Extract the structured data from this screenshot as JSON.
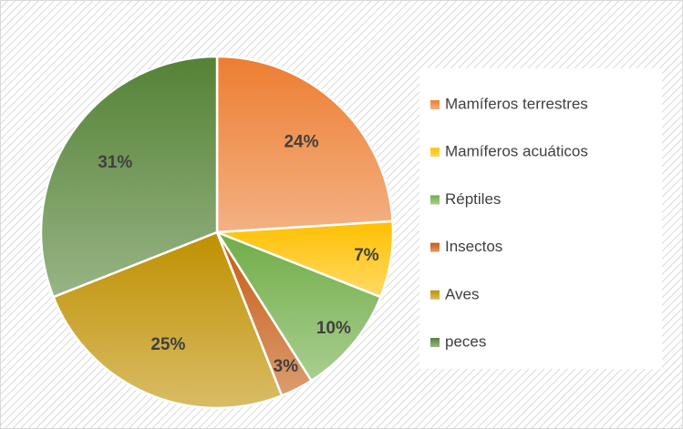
{
  "chart_data": {
    "type": "pie",
    "categories": [
      "Mamíferos terrestres",
      "Mamíferos acuáticos",
      "Réptiles",
      "Insectos",
      "Aves",
      "peces"
    ],
    "values": [
      24,
      7,
      10,
      3,
      25,
      31
    ],
    "value_labels": [
      "24%",
      "7%",
      "10%",
      "3%",
      "25%",
      "31%"
    ],
    "colors": [
      "#ed7d31",
      "#ffc000",
      "#70ad47",
      "#c55a11",
      "#bf9000",
      "#548235"
    ],
    "legend": "right"
  }
}
